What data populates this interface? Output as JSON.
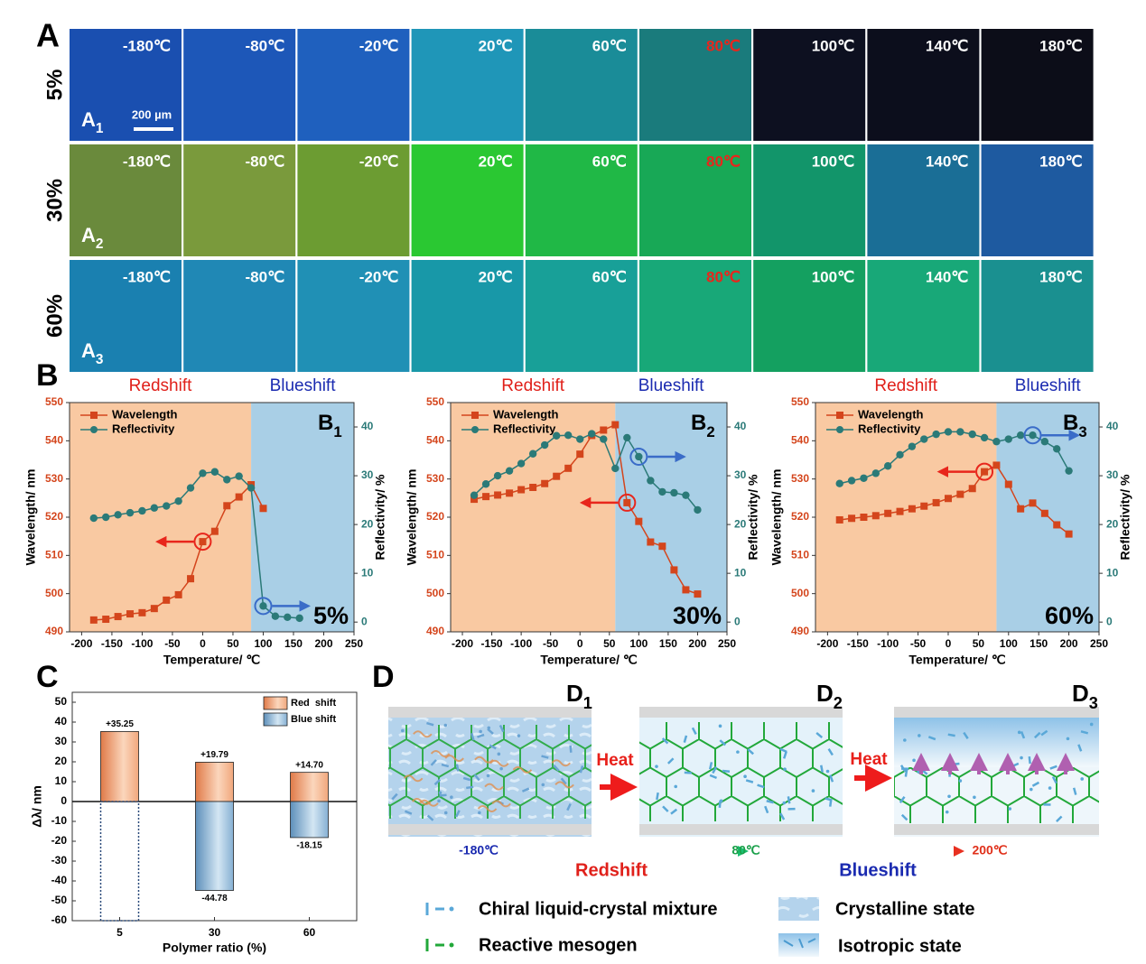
{
  "panels": {
    "a": "A",
    "b": "B",
    "c": "C",
    "d": "D"
  },
  "panel_a": {
    "temperatures": [
      "-180℃",
      "-80℃",
      "-20℃",
      "20℃",
      "60℃",
      "80℃",
      "100℃",
      "140℃",
      "180℃"
    ],
    "temperature_colors": [
      "#ffffff",
      "#ffffff",
      "#ffffff",
      "#ffffff",
      "#ffffff",
      "#e8261c",
      "#ffffff",
      "#ffffff",
      "#ffffff"
    ],
    "scale_bar": "200 µm",
    "rows": [
      {
        "label": "5%",
        "tag": "A",
        "tag_sub": "1",
        "colors": [
          "#1a4fb0",
          "#1d57b8",
          "#1f60be",
          "#1f96b8",
          "#1a8c98",
          "#1a7b7c",
          "#0d1020",
          "#0c0e1c",
          "#0c0d18"
        ]
      },
      {
        "label": "30%",
        "tag": "A",
        "tag_sub": "2",
        "colors": [
          "#6a8a3c",
          "#7a9a3c",
          "#6c9c32",
          "#2ac832",
          "#20b846",
          "#18a856",
          "#12956a",
          "#1a6e96",
          "#1e5aa0"
        ]
      },
      {
        "label": "60%",
        "tag": "A",
        "tag_sub": "3",
        "colors": [
          "#1a80b0",
          "#2088b5",
          "#2090b5",
          "#1898a8",
          "#18a098",
          "#18a878",
          "#14a060",
          "#18a878",
          "#1a9090"
        ]
      }
    ]
  },
  "chart_data": [
    {
      "type": "dual-line",
      "label": "B",
      "label_sub": "1",
      "ratio": "5%",
      "annotations": [
        "Redshift",
        "Blueshift"
      ],
      "annotation_colors": [
        "#e0201a",
        "#1a2ab0"
      ],
      "shade_split": 80,
      "shade_colors": [
        "#f9c9a2",
        "#a9cfe6"
      ],
      "x_label": "Temperature/ ℃",
      "y_label": "Wavelength/ nm",
      "y2_label": "Reflectivity/ %",
      "xlim": [
        -220,
        250
      ],
      "xticks": [
        -200,
        -150,
        -100,
        -50,
        0,
        50,
        100,
        150,
        200,
        250
      ],
      "ylim": [
        490,
        550
      ],
      "yticks": [
        490,
        500,
        510,
        520,
        530,
        540,
        550
      ],
      "y2lim": [
        -2,
        45
      ],
      "y2ticks": [
        0,
        10,
        20,
        30,
        40
      ],
      "series": [
        {
          "name": "Wavelength",
          "color": "#d4451c",
          "marker": "square",
          "x": [
            -180,
            -160,
            -140,
            -120,
            -100,
            -80,
            -60,
            -40,
            -20,
            0,
            20,
            40,
            60,
            80,
            100
          ],
          "values": [
            493.1,
            493.3,
            494,
            494.7,
            495,
            496.1,
            498.3,
            499.7,
            503.9,
            513.6,
            516.3,
            523,
            525.3,
            528.5,
            522.3
          ]
        },
        {
          "name": "Reflectivity",
          "color": "#2b7a78",
          "marker": "circle",
          "axis": "y2",
          "x": [
            -180,
            -160,
            -140,
            -120,
            -100,
            -80,
            -60,
            -40,
            -20,
            0,
            20,
            40,
            60,
            80,
            100,
            120,
            140,
            160
          ],
          "values": [
            21.3,
            21.5,
            22,
            22.4,
            22.8,
            23.4,
            23.8,
            24.8,
            27.5,
            30.5,
            30.8,
            29.2,
            29.9,
            27.5,
            3.3,
            1.2,
            1,
            0.8
          ]
        }
      ]
    },
    {
      "type": "dual-line",
      "label": "B",
      "label_sub": "2",
      "ratio": "30%",
      "annotations": [
        "Redshift",
        "Blueshift"
      ],
      "annotation_colors": [
        "#e0201a",
        "#1a2ab0"
      ],
      "shade_split": 60,
      "shade_colors": [
        "#f9c9a2",
        "#a9cfe6"
      ],
      "x_label": "Temperature/ ℃",
      "y_label": "Wavelength/ nm",
      "y2_label": "Reflectivity/ %",
      "xlim": [
        -220,
        250
      ],
      "xticks": [
        -200,
        -150,
        -100,
        -50,
        0,
        50,
        100,
        150,
        200,
        250
      ],
      "ylim": [
        490,
        550
      ],
      "yticks": [
        490,
        500,
        510,
        520,
        530,
        540,
        550
      ],
      "y2lim": [
        -2,
        45
      ],
      "y2ticks": [
        0,
        10,
        20,
        30,
        40
      ],
      "series": [
        {
          "name": "Wavelength",
          "color": "#d4451c",
          "marker": "square",
          "x": [
            -180,
            -160,
            -140,
            -120,
            -100,
            -80,
            -60,
            -40,
            -20,
            0,
            20,
            40,
            60,
            80,
            100,
            120,
            140,
            160,
            180,
            200
          ],
          "values": [
            524.7,
            525.4,
            525.8,
            526.3,
            527.2,
            527.8,
            528.8,
            530.7,
            532.8,
            536.5,
            541.4,
            542.8,
            544.2,
            523.8,
            518.9,
            513.5,
            512.4,
            506.2,
            501,
            499.9
          ]
        },
        {
          "name": "Reflectivity",
          "color": "#2b7a78",
          "marker": "circle",
          "axis": "y2",
          "x": [
            -180,
            -160,
            -140,
            -120,
            -100,
            -80,
            -60,
            -40,
            -20,
            0,
            20,
            40,
            60,
            80,
            100,
            120,
            140,
            160,
            180,
            200
          ],
          "values": [
            26,
            28.3,
            30,
            31,
            32.5,
            34.5,
            36.3,
            38.2,
            38.3,
            37.5,
            38.6,
            37.5,
            31.5,
            37.8,
            33.9,
            29,
            26.7,
            26.5,
            26,
            23
          ]
        }
      ]
    },
    {
      "type": "dual-line",
      "label": "B",
      "label_sub": "3",
      "ratio": "60%",
      "annotations": [
        "Redshift",
        "Blueshift"
      ],
      "annotation_colors": [
        "#e0201a",
        "#1a2ab0"
      ],
      "shade_split": 80,
      "shade_colors": [
        "#f9c9a2",
        "#a9cfe6"
      ],
      "x_label": "Temperature/ ℃",
      "y_label": "Wavelength/ nm",
      "y2_label": "Reflectivity/ %",
      "xlim": [
        -220,
        250
      ],
      "xticks": [
        -200,
        -150,
        -100,
        -50,
        0,
        50,
        100,
        150,
        200,
        250
      ],
      "ylim": [
        490,
        550
      ],
      "yticks": [
        490,
        500,
        510,
        520,
        530,
        540,
        550
      ],
      "y2lim": [
        -2,
        45
      ],
      "y2ticks": [
        0,
        10,
        20,
        30,
        40
      ],
      "series": [
        {
          "name": "Wavelength",
          "color": "#d4451c",
          "marker": "square",
          "x": [
            -180,
            -160,
            -140,
            -120,
            -100,
            -80,
            -60,
            -40,
            -20,
            0,
            20,
            40,
            60,
            80,
            100,
            120,
            140,
            160,
            180,
            200
          ],
          "values": [
            519.3,
            519.7,
            520,
            520.4,
            521,
            521.5,
            522.2,
            522.9,
            523.8,
            524.9,
            526,
            527.5,
            531.9,
            533.6,
            528.6,
            522.2,
            523.7,
            521,
            518,
            515.6
          ]
        },
        {
          "name": "Reflectivity",
          "color": "#2b7a78",
          "marker": "circle",
          "axis": "y2",
          "x": [
            -180,
            -160,
            -140,
            -120,
            -100,
            -80,
            -60,
            -40,
            -20,
            0,
            20,
            40,
            60,
            80,
            100,
            120,
            140,
            160,
            180,
            200
          ],
          "values": [
            28.4,
            29,
            29.5,
            30.5,
            32,
            34.3,
            36,
            37.5,
            38.5,
            39,
            39,
            38.5,
            37.8,
            37,
            37.5,
            38.3,
            38.3,
            37,
            35.5,
            31
          ]
        }
      ]
    },
    {
      "type": "bar",
      "x_label": "Polymer ratio (%)",
      "y_label": "Δλ/ nm",
      "categories": [
        "5",
        "30",
        "60"
      ],
      "ylim": [
        -60,
        55
      ],
      "yticks": [
        -60,
        -50,
        -40,
        -30,
        -20,
        -10,
        0,
        10,
        20,
        30,
        40,
        50
      ],
      "legend": "upper right",
      "series": [
        {
          "name": "Red  shift",
          "color": "#e8885a",
          "values": [
            35.25,
            19.79,
            14.7
          ],
          "value_labels": [
            "+35.25",
            "+19.79",
            "+14.70"
          ]
        },
        {
          "name": "Blue shift",
          "color": "#6a9ac0",
          "values": [
            null,
            -44.78,
            -18.15
          ]
        }
      ]
    }
  ],
  "panel_d": {
    "stages": [
      {
        "label": "D",
        "sub": "1"
      },
      {
        "label": "D",
        "sub": "2"
      },
      {
        "label": "D",
        "sub": "3"
      }
    ],
    "heat": [
      "Heat",
      "Heat"
    ],
    "temperatures": [
      "-180℃",
      "80℃",
      "200℃"
    ],
    "temperature_colors": [
      "#1a2ab0",
      "#1aa04a",
      "#e0301a"
    ],
    "shifts": [
      "Redshift",
      "Blueshift"
    ],
    "shift_colors": [
      "#e0201a",
      "#1a2ab0"
    ],
    "legend": [
      "Chiral liquid-crystal mixture",
      "Reactive mesogen",
      "Crystalline state",
      "Isotropic state"
    ]
  }
}
